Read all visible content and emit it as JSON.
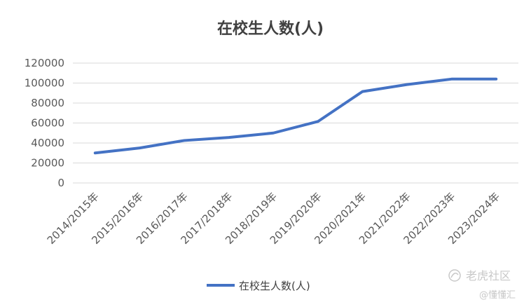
{
  "chart_data": {
    "type": "line",
    "title": "在校生人数(人)",
    "xlabel": "",
    "ylabel": "",
    "categories": [
      "2014/2015年",
      "2015/2016年",
      "2016/2017年",
      "2017/2018年",
      "2018/2019年",
      "2019/2020年",
      "2020/2021年",
      "2021/2022年",
      "2022/2023年",
      "2023/2024年"
    ],
    "series": [
      {
        "name": "在校生人数(人)",
        "values": [
          30000,
          35000,
          42500,
          45500,
          50000,
          61500,
          91500,
          98500,
          104000,
          104000
        ],
        "color": "#4472c4"
      }
    ],
    "ylim": [
      0,
      120000
    ],
    "yticks": [
      "0",
      "20000",
      "40000",
      "60000",
      "80000",
      "100000",
      "120000"
    ],
    "grid": true,
    "legend_position": "bottom"
  },
  "watermark": {
    "line1": "老虎社区",
    "line2": "@懂懂汇",
    "icon": "tiger-logo-icon"
  }
}
